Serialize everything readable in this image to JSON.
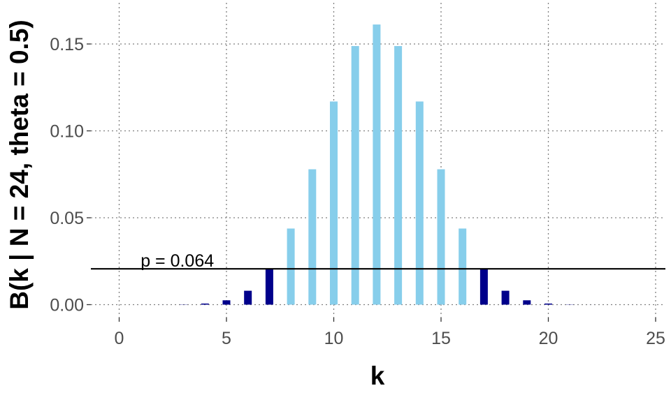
{
  "chart_data": {
    "type": "bar",
    "xlabel": "k",
    "ylabel": "B(k | N = 24, theta = 0.5)",
    "xlim": [
      -1.5,
      25.5
    ],
    "ylim": [
      -0.005,
      0.168
    ],
    "x_ticks": [
      0,
      5,
      10,
      15,
      20,
      25
    ],
    "x_tick_labels": [
      "0",
      "5",
      "10",
      "15",
      "20",
      "25"
    ],
    "y_ticks": [
      0.0,
      0.05,
      0.1,
      0.15
    ],
    "y_tick_labels": [
      "0.00",
      "0.05",
      "0.10",
      "0.15"
    ],
    "grid": true,
    "x": [
      0,
      1,
      2,
      3,
      4,
      5,
      6,
      7,
      8,
      9,
      10,
      11,
      12,
      13,
      14,
      15,
      16,
      17,
      18,
      19,
      20,
      21,
      22,
      23,
      24
    ],
    "values": [
      6e-08,
      1.4e-06,
      1.6e-05,
      0.00012,
      0.00063,
      0.0025,
      0.008,
      0.0206,
      0.0438,
      0.0779,
      0.1169,
      0.1488,
      0.1612,
      0.1488,
      0.1169,
      0.0779,
      0.0438,
      0.0206,
      0.008,
      0.0025,
      0.00063,
      0.00012,
      1.6e-05,
      1.4e-06,
      6e-08
    ],
    "rejection_region": [
      true,
      true,
      true,
      true,
      true,
      true,
      true,
      true,
      false,
      false,
      false,
      false,
      false,
      false,
      false,
      false,
      false,
      true,
      true,
      true,
      true,
      true,
      true,
      true,
      true
    ],
    "colors": {
      "rejected": "#00008b",
      "accepted": "#87ceeb",
      "threshold_line": "#000000"
    },
    "threshold": 0.0206,
    "annotation": {
      "text": "p = 0.064",
      "x": 1.0,
      "y": 0.0255
    }
  }
}
